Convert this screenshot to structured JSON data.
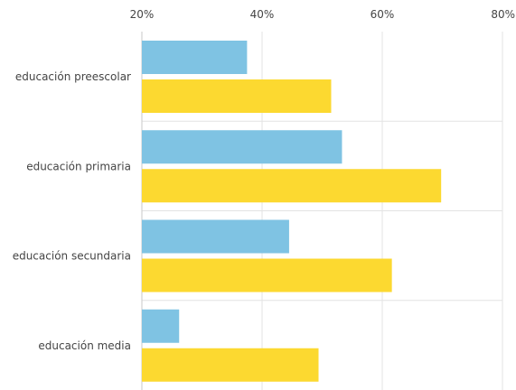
{
  "chart_data": {
    "type": "bar",
    "orientation": "horizontal",
    "categories": [
      "educación preescolar",
      "educación primaria",
      "educación secundaria",
      "educación media"
    ],
    "series": [
      {
        "color": "#7fc3e3",
        "values": [
          37.5,
          53.3,
          44.5,
          26.2
        ]
      },
      {
        "color": "#fcd930",
        "values": [
          51.5,
          69.8,
          61.6,
          49.4
        ]
      }
    ],
    "x_ticks": [
      20,
      40,
      60,
      80
    ],
    "x_tick_labels": [
      "20%",
      "40%",
      "60%",
      "80%"
    ],
    "xlim": [
      20,
      80
    ],
    "x_axis_position": "top",
    "grid": true,
    "title": "",
    "xlabel": "",
    "ylabel": ""
  }
}
